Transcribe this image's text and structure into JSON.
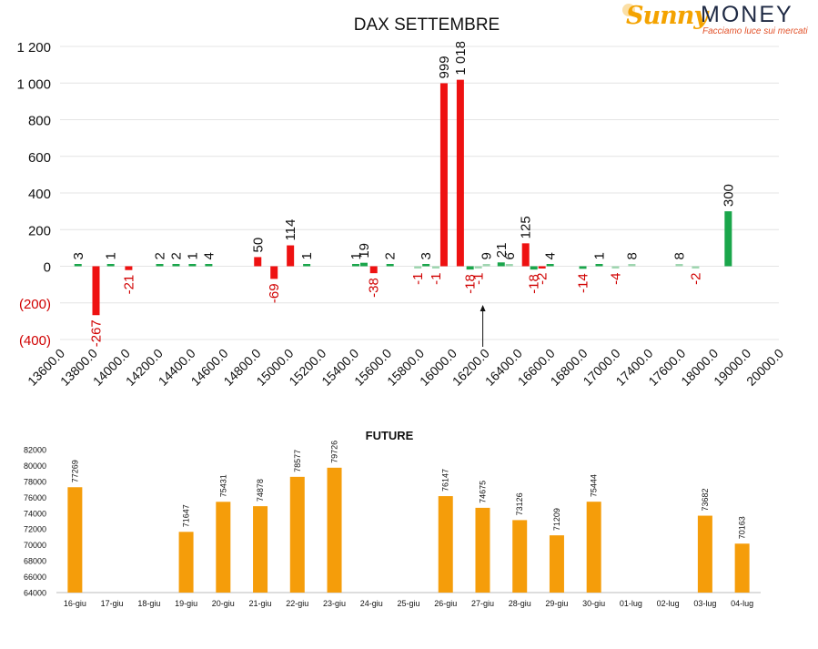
{
  "logo": {
    "brand_first": "Sunny",
    "brand_second": "MONEY",
    "tagline": "Facciamo luce sui mercati"
  },
  "chart_data": [
    {
      "type": "bar",
      "title": "DAX SETTEMBRE",
      "xlabel": "",
      "ylabel": "",
      "ylim": [
        -400,
        1200
      ],
      "yticks": [
        -400,
        -200,
        0,
        200,
        400,
        600,
        800,
        1000,
        1200
      ],
      "ytick_labels": [
        "(400)",
        "(200)",
        "0",
        "200",
        "400",
        "600",
        "800",
        "1 000",
        "1 200"
      ],
      "x_tick_labels": [
        "13600.0",
        "13800.0",
        "14000.0",
        "14200.0",
        "14400.0",
        "14600.0",
        "14800.0",
        "15000.0",
        "15200.0",
        "15400.0",
        "15600.0",
        "15800.0",
        "16000.0",
        "16200.0",
        "16400.0",
        "16600.0",
        "16800.0",
        "17000.0",
        "17400.0",
        "17600.0",
        "18000.0",
        "19000.0",
        "20000.0"
      ],
      "grid": true,
      "legend": "none",
      "annotations": [
        "arrow below 16200.0"
      ],
      "colors": {
        "red": "#ee1111",
        "green": "#1aa64b",
        "light_green": "#9fd6b0"
      },
      "bars": [
        {
          "pos": 0.55,
          "label": "3",
          "value": 3,
          "color": "green"
        },
        {
          "pos": 1.1,
          "label": "-267",
          "value": -267,
          "color": "red"
        },
        {
          "pos": 1.55,
          "label": "1",
          "value": 1,
          "color": "green"
        },
        {
          "pos": 2.1,
          "label": "-21",
          "value": -21,
          "color": "red"
        },
        {
          "pos": 3.05,
          "label": "2",
          "value": 2,
          "color": "green"
        },
        {
          "pos": 3.55,
          "label": "2",
          "value": 2,
          "color": "green"
        },
        {
          "pos": 4.05,
          "label": "1",
          "value": 1,
          "color": "green"
        },
        {
          "pos": 4.55,
          "label": "4",
          "value": 4,
          "color": "green"
        },
        {
          "pos": 6.05,
          "label": "50",
          "value": 50,
          "color": "red"
        },
        {
          "pos": 6.55,
          "label": "-69",
          "value": -69,
          "color": "red"
        },
        {
          "pos": 7.05,
          "label": "114",
          "value": 114,
          "color": "red"
        },
        {
          "pos": 7.55,
          "label": "1",
          "value": 1,
          "color": "green"
        },
        {
          "pos": 9.05,
          "label": "1",
          "value": 1,
          "color": "green"
        },
        {
          "pos": 9.3,
          "label": "19",
          "value": 19,
          "color": "green"
        },
        {
          "pos": 9.6,
          "label": "-38",
          "value": -38,
          "color": "red"
        },
        {
          "pos": 10.1,
          "label": "2",
          "value": 2,
          "color": "green"
        },
        {
          "pos": 10.95,
          "label": "-1",
          "value": -1,
          "color": "light_green"
        },
        {
          "pos": 11.2,
          "label": "3",
          "value": 3,
          "color": "green"
        },
        {
          "pos": 11.5,
          "label": "-1",
          "value": -1,
          "color": "light_green"
        },
        {
          "pos": 11.75,
          "label": "999",
          "value": 999,
          "color": "red"
        },
        {
          "pos": 12.25,
          "label": "1 018",
          "value": 1018,
          "color": "red"
        },
        {
          "pos": 12.55,
          "label": "-18",
          "value": -18,
          "color": "green"
        },
        {
          "pos": 12.8,
          "label": "-1",
          "value": -1,
          "color": "light_green"
        },
        {
          "pos": 13.05,
          "label": "9",
          "value": 9,
          "color": "light_green"
        },
        {
          "pos": 13.5,
          "label": "21",
          "value": 21,
          "color": "green"
        },
        {
          "pos": 13.75,
          "label": "6",
          "value": 6,
          "color": "light_green"
        },
        {
          "pos": 14.25,
          "label": "125",
          "value": 125,
          "color": "red"
        },
        {
          "pos": 14.5,
          "label": "-18",
          "value": -18,
          "color": "green"
        },
        {
          "pos": 14.75,
          "label": "-2",
          "value": -2,
          "color": "red"
        },
        {
          "pos": 15.0,
          "label": "4",
          "value": 4,
          "color": "green"
        },
        {
          "pos": 16.0,
          "label": "-14",
          "value": -14,
          "color": "green"
        },
        {
          "pos": 16.5,
          "label": "1",
          "value": 1,
          "color": "green"
        },
        {
          "pos": 17.0,
          "label": "-4",
          "value": -4,
          "color": "light_green"
        },
        {
          "pos": 17.5,
          "label": "8",
          "value": 8,
          "color": "light_green"
        },
        {
          "pos": 18.95,
          "label": "8",
          "value": 8,
          "color": "light_green"
        },
        {
          "pos": 19.45,
          "label": "-2",
          "value": -2,
          "color": "light_green"
        },
        {
          "pos": 20.45,
          "label": "300",
          "value": 300,
          "color": "green"
        }
      ]
    },
    {
      "type": "bar",
      "title": "FUTURE",
      "xlabel": "",
      "ylabel": "",
      "ylim": [
        64000,
        82000
      ],
      "yticks": [
        64000,
        66000,
        68000,
        70000,
        72000,
        74000,
        76000,
        78000,
        80000,
        82000
      ],
      "grid": false,
      "legend": "none",
      "color": "#f59d0a",
      "categories": [
        "16-giu",
        "17-giu",
        "18-giu",
        "19-giu",
        "20-giu",
        "21-giu",
        "22-giu",
        "23-giu",
        "24-giu",
        "25-giu",
        "26-giu",
        "27-giu",
        "28-giu",
        "29-giu",
        "30-giu",
        "01-lug",
        "02-lug",
        "03-lug",
        "04-lug"
      ],
      "values": [
        77269,
        null,
        null,
        71647,
        75431,
        74878,
        78577,
        79726,
        null,
        null,
        76147,
        74675,
        73126,
        71209,
        75444,
        null,
        null,
        73682,
        70163
      ]
    }
  ]
}
